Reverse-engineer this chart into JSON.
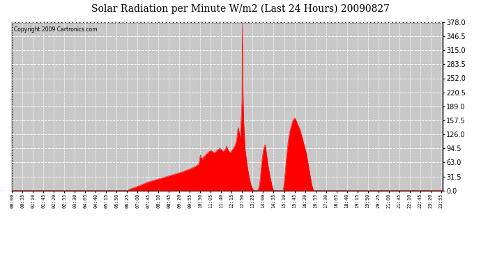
{
  "title": "Solar Radiation per Minute W/m2 (Last 24 Hours) 20090827",
  "copyright_text": "Copyright 2009 Cartronics.com",
  "background_color": "#ffffff",
  "plot_bg_color": "#c8c8c8",
  "fill_color": "#ff0000",
  "line_color": "#ff0000",
  "baseline_color": "#ff0000",
  "grid_color": "#ffffff",
  "ymin": 0.0,
  "ymax": 378.0,
  "yticks": [
    0.0,
    31.5,
    63.0,
    94.5,
    126.0,
    157.5,
    189.0,
    220.5,
    252.0,
    283.5,
    315.0,
    346.5,
    378.0
  ],
  "xlabel_fontsize": 5.0,
  "ylabel_fontsize": 7,
  "title_fontsize": 10,
  "num_minutes": 1440,
  "keypoints": [
    [
      0,
      0
    ],
    [
      385,
      0
    ],
    [
      390,
      2
    ],
    [
      400,
      5
    ],
    [
      415,
      8
    ],
    [
      430,
      12
    ],
    [
      450,
      18
    ],
    [
      470,
      22
    ],
    [
      490,
      26
    ],
    [
      510,
      30
    ],
    [
      530,
      34
    ],
    [
      550,
      38
    ],
    [
      570,
      42
    ],
    [
      585,
      46
    ],
    [
      600,
      50
    ],
    [
      615,
      55
    ],
    [
      625,
      60
    ],
    [
      630,
      80
    ],
    [
      635,
      70
    ],
    [
      640,
      75
    ],
    [
      645,
      78
    ],
    [
      650,
      82
    ],
    [
      655,
      85
    ],
    [
      660,
      88
    ],
    [
      665,
      90
    ],
    [
      670,
      88
    ],
    [
      675,
      85
    ],
    [
      680,
      86
    ],
    [
      685,
      90
    ],
    [
      690,
      92
    ],
    [
      695,
      95
    ],
    [
      700,
      92
    ],
    [
      705,
      88
    ],
    [
      710,
      90
    ],
    [
      715,
      95
    ],
    [
      718,
      100
    ],
    [
      720,
      95
    ],
    [
      725,
      88
    ],
    [
      730,
      85
    ],
    [
      735,
      90
    ],
    [
      740,
      95
    ],
    [
      745,
      100
    ],
    [
      748,
      105
    ],
    [
      750,
      110
    ],
    [
      752,
      118
    ],
    [
      754,
      130
    ],
    [
      756,
      142
    ],
    [
      758,
      138
    ],
    [
      760,
      130
    ],
    [
      762,
      122
    ],
    [
      763,
      115
    ],
    [
      764,
      125
    ],
    [
      765,
      140
    ],
    [
      766,
      155
    ],
    [
      767,
      168
    ],
    [
      768,
      185
    ],
    [
      769,
      200
    ],
    [
      770,
      378
    ],
    [
      771,
      320
    ],
    [
      772,
      260
    ],
    [
      773,
      210
    ],
    [
      774,
      175
    ],
    [
      775,
      155
    ],
    [
      776,
      140
    ],
    [
      777,
      125
    ],
    [
      778,
      112
    ],
    [
      779,
      100
    ],
    [
      780,
      90
    ],
    [
      782,
      80
    ],
    [
      784,
      70
    ],
    [
      786,
      60
    ],
    [
      788,
      50
    ],
    [
      790,
      42
    ],
    [
      792,
      35
    ],
    [
      794,
      28
    ],
    [
      796,
      22
    ],
    [
      798,
      16
    ],
    [
      800,
      12
    ],
    [
      802,
      8
    ],
    [
      804,
      5
    ],
    [
      806,
      3
    ],
    [
      808,
      1
    ],
    [
      810,
      0
    ],
    [
      820,
      0
    ],
    [
      825,
      5
    ],
    [
      828,
      15
    ],
    [
      830,
      25
    ],
    [
      832,
      40
    ],
    [
      834,
      55
    ],
    [
      836,
      68
    ],
    [
      838,
      78
    ],
    [
      840,
      88
    ],
    [
      842,
      95
    ],
    [
      844,
      100
    ],
    [
      846,
      103
    ],
    [
      848,
      98
    ],
    [
      850,
      88
    ],
    [
      852,
      78
    ],
    [
      854,
      68
    ],
    [
      856,
      58
    ],
    [
      858,
      50
    ],
    [
      860,
      42
    ],
    [
      862,
      35
    ],
    [
      864,
      28
    ],
    [
      866,
      22
    ],
    [
      868,
      16
    ],
    [
      870,
      10
    ],
    [
      872,
      5
    ],
    [
      874,
      2
    ],
    [
      876,
      0
    ],
    [
      905,
      0
    ],
    [
      908,
      5
    ],
    [
      910,
      15
    ],
    [
      912,
      30
    ],
    [
      914,
      45
    ],
    [
      916,
      60
    ],
    [
      918,
      75
    ],
    [
      920,
      88
    ],
    [
      922,
      100
    ],
    [
      924,
      112
    ],
    [
      926,
      120
    ],
    [
      928,
      128
    ],
    [
      930,
      135
    ],
    [
      932,
      140
    ],
    [
      934,
      145
    ],
    [
      936,
      150
    ],
    [
      938,
      155
    ],
    [
      940,
      158
    ],
    [
      942,
      160
    ],
    [
      944,
      162
    ],
    [
      946,
      163
    ],
    [
      948,
      160
    ],
    [
      950,
      158
    ],
    [
      952,
      155
    ],
    [
      954,
      150
    ],
    [
      956,
      148
    ],
    [
      958,
      145
    ],
    [
      960,
      142
    ],
    [
      962,
      138
    ],
    [
      964,
      135
    ],
    [
      966,
      130
    ],
    [
      968,
      125
    ],
    [
      970,
      120
    ],
    [
      972,
      115
    ],
    [
      974,
      110
    ],
    [
      976,
      105
    ],
    [
      978,
      100
    ],
    [
      980,
      95
    ],
    [
      982,
      90
    ],
    [
      984,
      85
    ],
    [
      986,
      78
    ],
    [
      988,
      70
    ],
    [
      990,
      62
    ],
    [
      992,
      54
    ],
    [
      994,
      46
    ],
    [
      996,
      38
    ],
    [
      998,
      30
    ],
    [
      1000,
      22
    ],
    [
      1002,
      15
    ],
    [
      1004,
      10
    ],
    [
      1006,
      5
    ],
    [
      1008,
      2
    ],
    [
      1010,
      0
    ],
    [
      1120,
      0
    ]
  ]
}
